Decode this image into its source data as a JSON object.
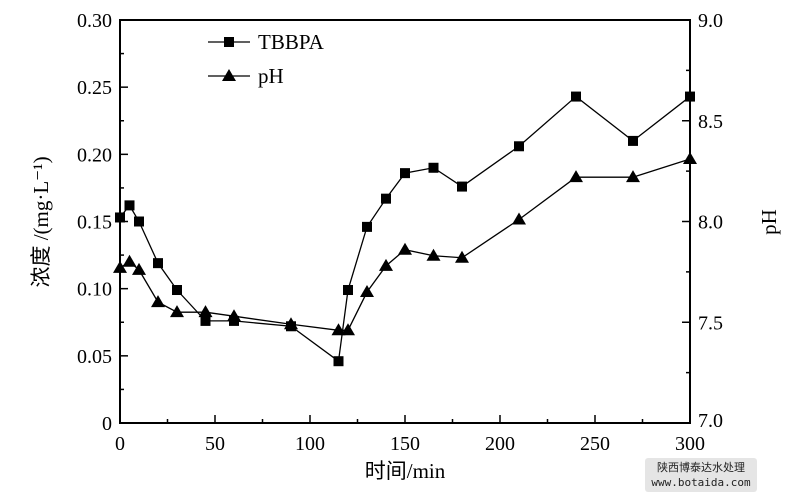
{
  "chart_data": {
    "type": "line",
    "xlabel": "时间/min",
    "ylabel": "浓度 /(mg·L⁻¹)",
    "y2label": "pH",
    "xlim": [
      0,
      300
    ],
    "ylim": [
      0,
      0.3
    ],
    "y2lim": [
      7.0,
      9.0
    ],
    "xticks": [
      "0",
      "50",
      "100",
      "150",
      "200",
      "250",
      "300"
    ],
    "yticks": [
      "0",
      "0.05",
      "0.10",
      "0.15",
      "0.20",
      "0.25",
      "0.30"
    ],
    "y2ticks": [
      "7.0",
      "7.5",
      "8.0",
      "8.5",
      "9.0"
    ],
    "grid": false,
    "legend_position": "top-left",
    "x": [
      0,
      5,
      10,
      20,
      30,
      45,
      60,
      90,
      115,
      120,
      130,
      140,
      150,
      165,
      180,
      210,
      240,
      270,
      300
    ],
    "series": [
      {
        "name": "TBBPA",
        "axis": "left",
        "marker": "square",
        "values": [
          0.153,
          0.162,
          0.15,
          0.119,
          0.099,
          0.076,
          0.076,
          0.072,
          0.046,
          0.099,
          0.146,
          0.167,
          0.186,
          0.19,
          0.176,
          0.206,
          0.243,
          0.21,
          0.243
        ]
      },
      {
        "name": "pH",
        "axis": "right",
        "marker": "triangle",
        "values": [
          7.77,
          7.8,
          7.76,
          7.6,
          7.55,
          7.55,
          7.53,
          7.49,
          7.46,
          7.46,
          7.65,
          7.78,
          7.86,
          7.83,
          7.82,
          8.01,
          8.22,
          8.22,
          8.31
        ]
      }
    ]
  },
  "watermark": {
    "line1": "陕西博泰达水处理",
    "line2": "www.botaida.com"
  }
}
